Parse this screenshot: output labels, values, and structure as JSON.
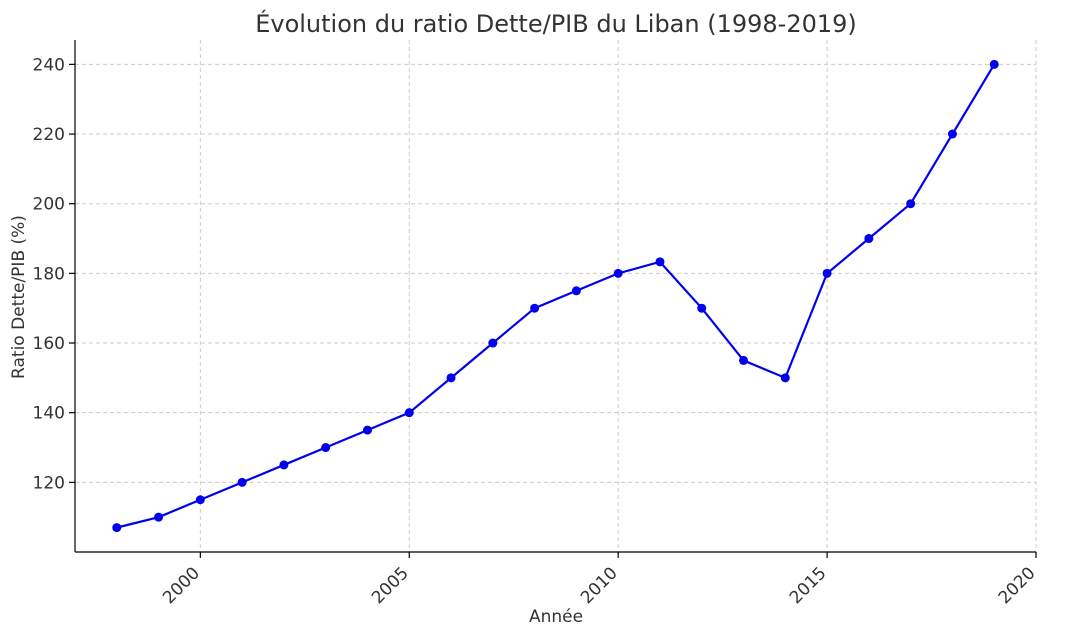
{
  "chart_data": {
    "type": "line",
    "title": "Évolution du ratio Dette/PIB du Liban (1998-2019)",
    "xlabel": "Année",
    "ylabel": "Ratio Dette/PIB (%)",
    "xlim": [
      1997,
      2020
    ],
    "ylim": [
      100,
      247
    ],
    "xticks": [
      2000,
      2005,
      2010,
      2015,
      2020
    ],
    "yticks": [
      120,
      140,
      160,
      180,
      200,
      220,
      240
    ],
    "grid": true,
    "color": "#0000ee",
    "x": [
      1998,
      1999,
      2000,
      2001,
      2002,
      2003,
      2004,
      2005,
      2006,
      2007,
      2008,
      2009,
      2010,
      2011,
      2012,
      2013,
      2014,
      2015,
      2016,
      2017,
      2018,
      2019
    ],
    "series": [
      {
        "values": [
          107,
          110,
          115,
          120,
          125,
          130,
          135,
          140,
          150,
          160,
          170,
          175,
          180,
          183.3,
          170,
          155,
          150,
          180,
          190,
          200,
          220,
          240
        ]
      }
    ]
  }
}
